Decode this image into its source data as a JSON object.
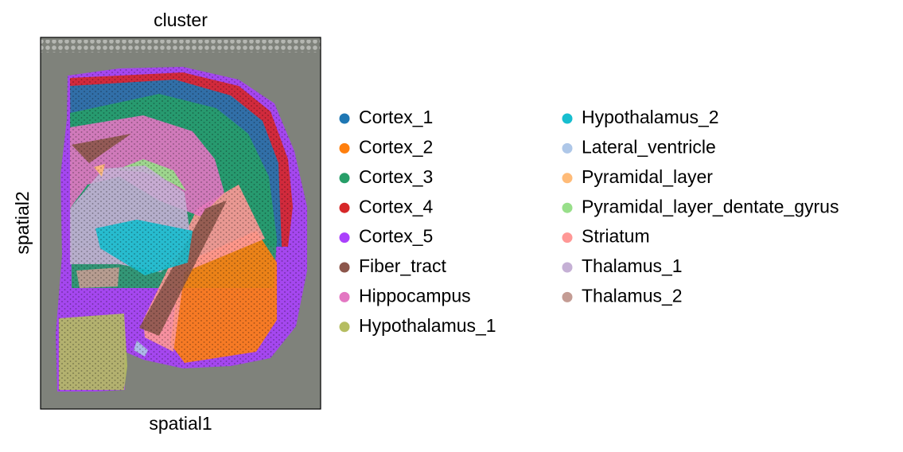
{
  "chart_data": {
    "type": "spatial",
    "title": "cluster",
    "x_label": "spatial1",
    "y_label": "spatial2",
    "legend": [
      {
        "name": "Cortex_1",
        "color": "#1f77b4"
      },
      {
        "name": "Cortex_2",
        "color": "#ff7f0e"
      },
      {
        "name": "Cortex_3",
        "color": "#279e68"
      },
      {
        "name": "Cortex_4",
        "color": "#d62728"
      },
      {
        "name": "Cortex_5",
        "color": "#aa40fc"
      },
      {
        "name": "Fiber_tract",
        "color": "#8c564b"
      },
      {
        "name": "Hippocampus",
        "color": "#e377c2"
      },
      {
        "name": "Hypothalamus_1",
        "color": "#b5bd61"
      },
      {
        "name": "Hypothalamus_2",
        "color": "#17becf"
      },
      {
        "name": "Lateral_ventricle",
        "color": "#aec7e8"
      },
      {
        "name": "Pyramidal_layer",
        "color": "#ffbb78"
      },
      {
        "name": "Pyramidal_layer_dentate_gyrus",
        "color": "#98df8a"
      },
      {
        "name": "Striatum",
        "color": "#ff9896"
      },
      {
        "name": "Thalamus_1",
        "color": "#c5b0d5"
      },
      {
        "name": "Thalamus_2",
        "color": "#c49c94"
      }
    ]
  }
}
